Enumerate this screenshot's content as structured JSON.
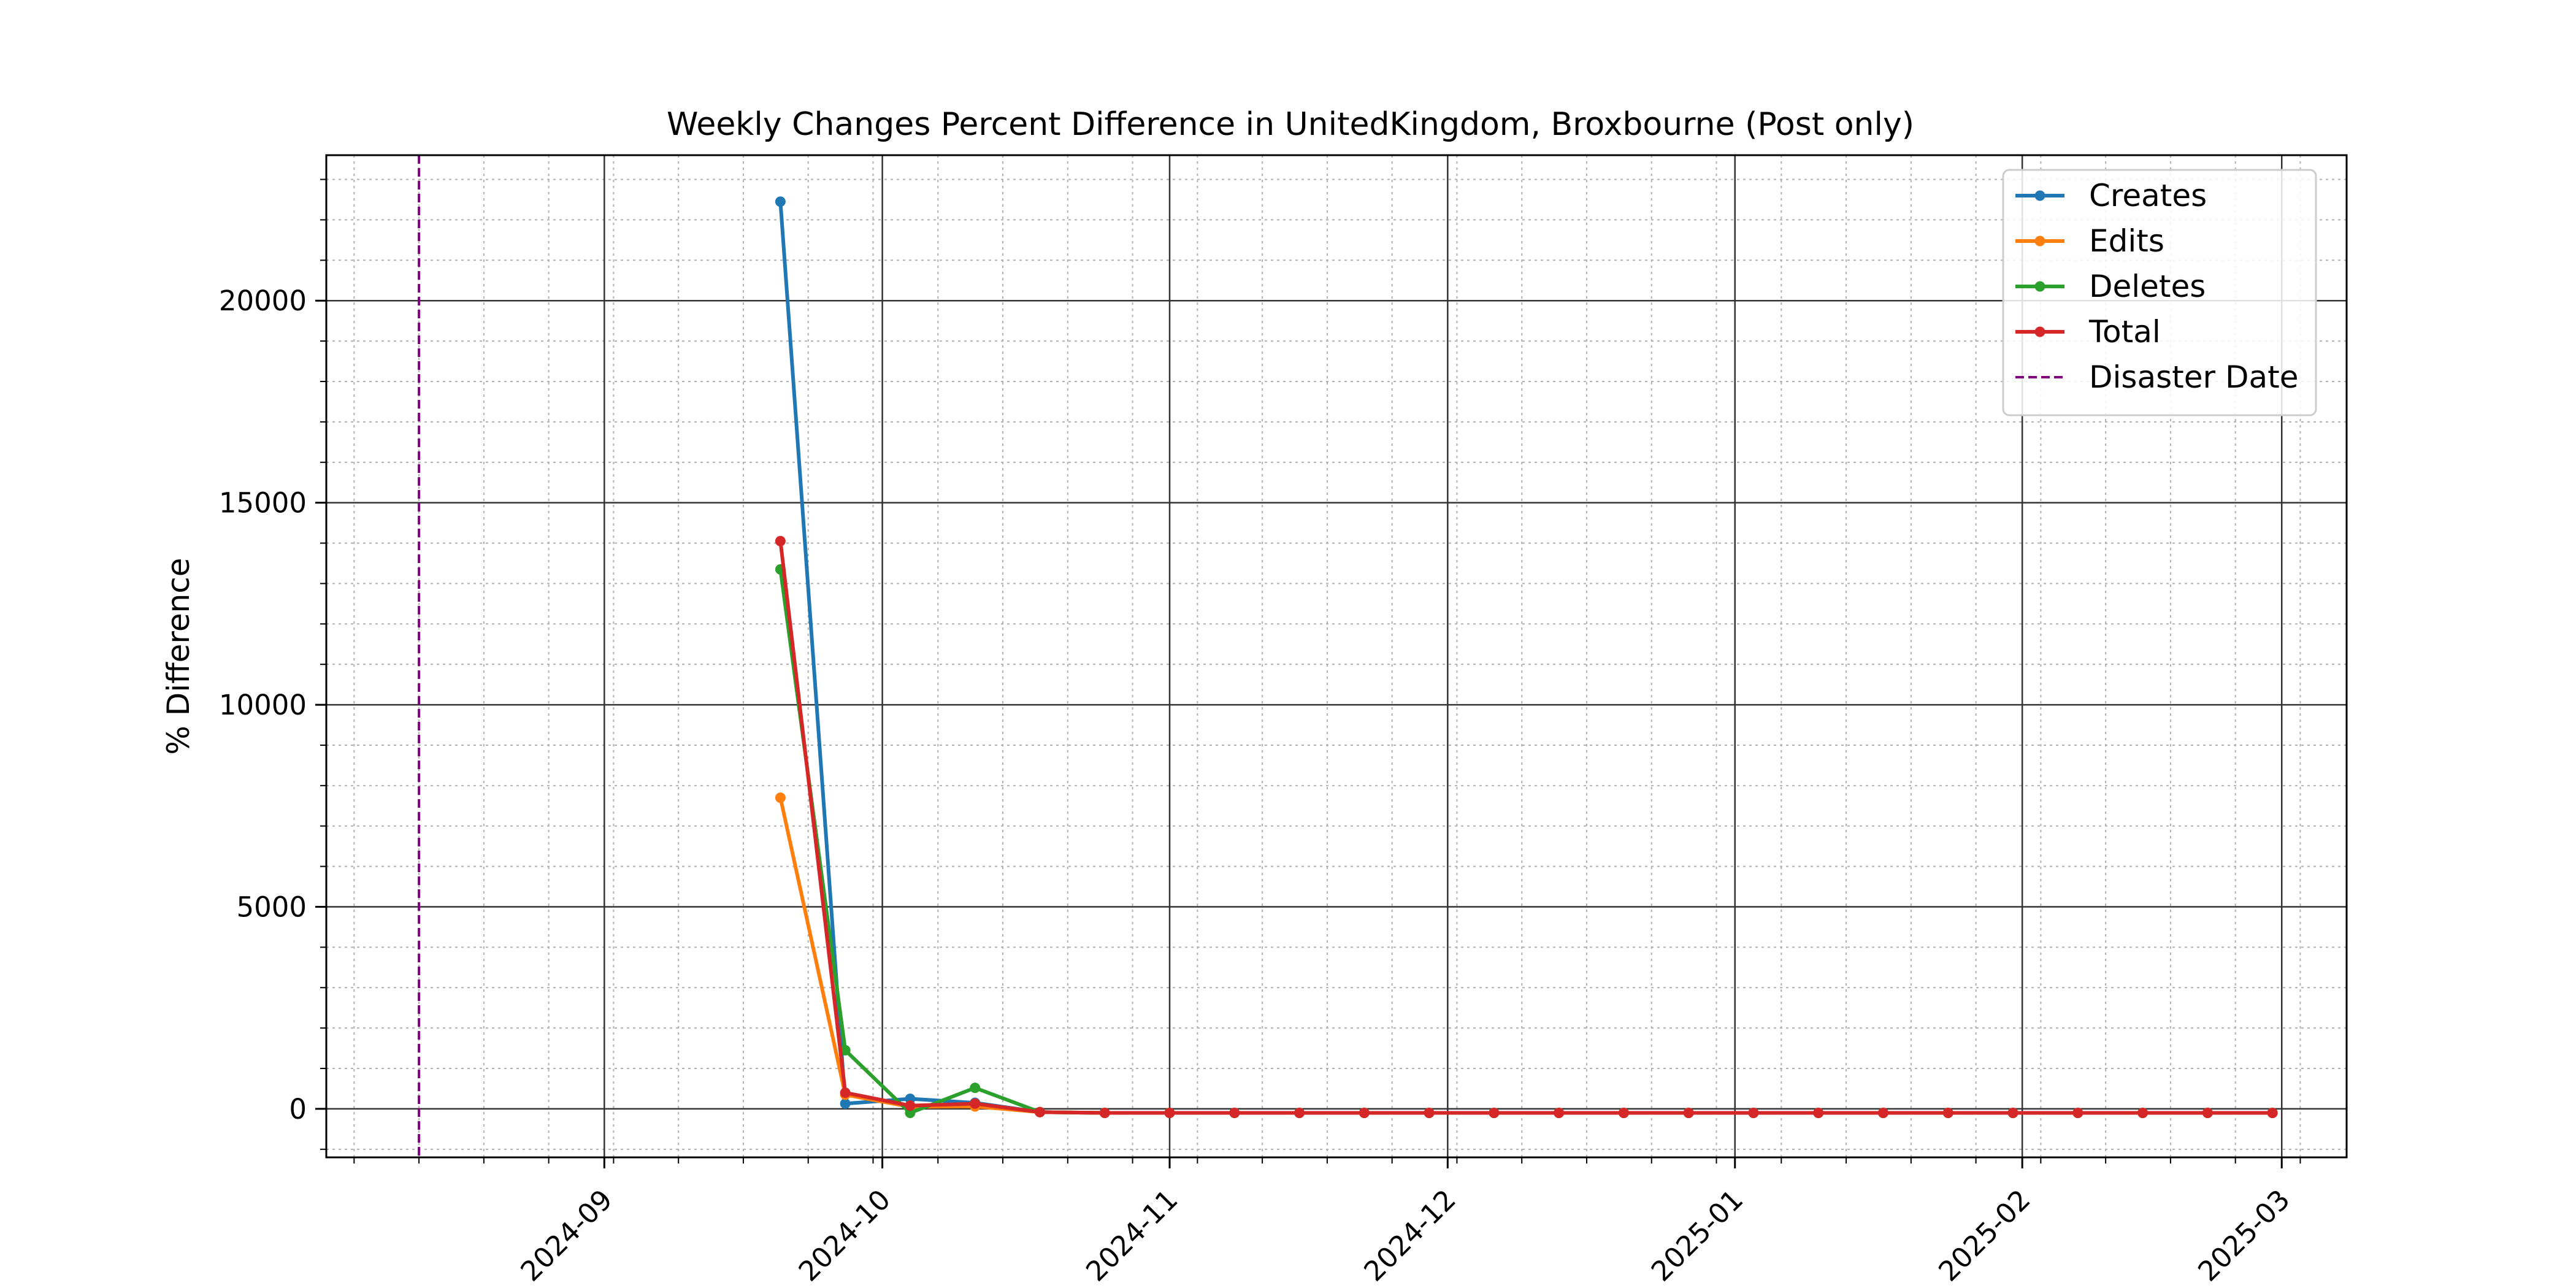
{
  "chart_data": {
    "type": "line",
    "title": "Weekly Changes Percent Difference in UnitedKingdom, Broxbourne (Post only)",
    "xlabel": "",
    "ylabel": "% Difference",
    "x_type": "date",
    "xlim": [
      "2024-08-02",
      "2025-03-08"
    ],
    "ylim": [
      -1200,
      23600
    ],
    "x_ticks": [
      "2024-09-01",
      "2024-10-01",
      "2024-11-01",
      "2024-12-01",
      "2025-01-01",
      "2025-02-01",
      "2025-03-01"
    ],
    "x_tick_labels": [
      "2024-09",
      "2024-10",
      "2024-11",
      "2024-12",
      "2025-01",
      "2025-02",
      "2025-03"
    ],
    "y_ticks": [
      0,
      5000,
      10000,
      15000,
      20000
    ],
    "y_tick_labels": [
      "0",
      "5000",
      "10000",
      "15000",
      "20000"
    ],
    "grid": true,
    "legend_position": "top-right",
    "annotations": [
      {
        "type": "vline",
        "x": "2024-08-12",
        "label": "Disaster Date",
        "color": "#800080",
        "style": "dashed"
      }
    ],
    "x": [
      "2024-09-20",
      "2024-09-27",
      "2024-10-04",
      "2024-10-11",
      "2024-10-18",
      "2024-10-25",
      "2024-11-01",
      "2024-11-08",
      "2024-11-15",
      "2024-11-22",
      "2024-11-29",
      "2024-12-06",
      "2024-12-13",
      "2024-12-20",
      "2024-12-27",
      "2025-01-03",
      "2025-01-10",
      "2025-01-17",
      "2025-01-24",
      "2025-01-31",
      "2025-02-07",
      "2025-02-14",
      "2025-02-21",
      "2025-02-28"
    ],
    "series": [
      {
        "name": "Creates",
        "color": "#1f77b4",
        "values": [
          22450,
          130,
          250,
          150,
          -80,
          -100,
          -100,
          -100,
          -100,
          -100,
          -100,
          -100,
          -100,
          -100,
          -100,
          -100,
          -100,
          -100,
          -100,
          -100,
          -100,
          -100,
          -100,
          -100
        ]
      },
      {
        "name": "Edits",
        "color": "#ff7f0e",
        "values": [
          7700,
          350,
          50,
          60,
          -80,
          -100,
          -100,
          -100,
          -100,
          -100,
          -100,
          -100,
          -100,
          -100,
          -100,
          -100,
          -100,
          -100,
          -100,
          -100,
          -100,
          -100,
          -100,
          -100
        ]
      },
      {
        "name": "Deletes",
        "color": "#2ca02c",
        "values": [
          13350,
          1450,
          -100,
          520,
          -80,
          -100,
          -100,
          -100,
          -100,
          -100,
          -100,
          -100,
          -100,
          -100,
          -100,
          -100,
          -100,
          -100,
          -100,
          -100,
          -100,
          -100,
          -100,
          -100
        ]
      },
      {
        "name": "Total",
        "color": "#d62728",
        "values": [
          14050,
          400,
          80,
          130,
          -80,
          -100,
          -100,
          -100,
          -100,
          -100,
          -100,
          -100,
          -100,
          -100,
          -100,
          -100,
          -100,
          -100,
          -100,
          -100,
          -100,
          -100,
          -100,
          -100
        ]
      }
    ]
  }
}
